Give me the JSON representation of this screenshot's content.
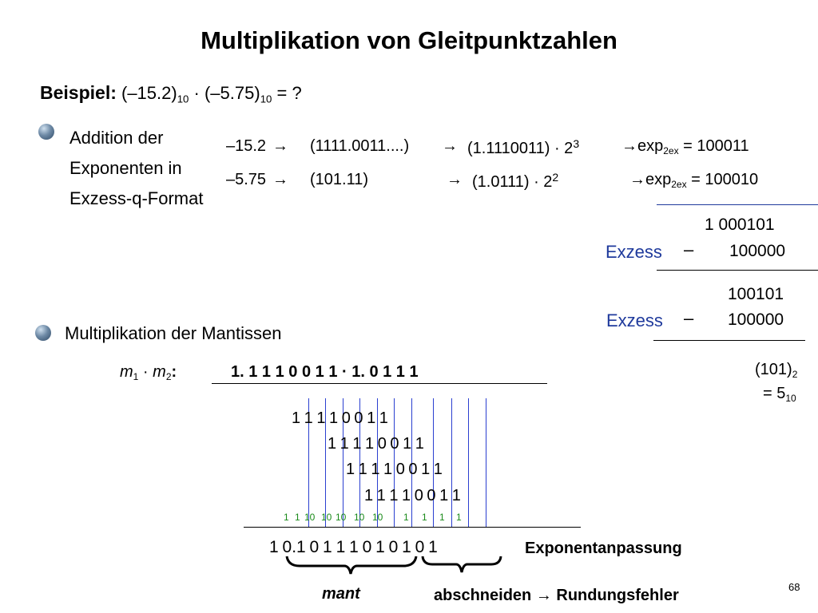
{
  "title": "Multiplikation von Gleitpunktzahlen",
  "example": {
    "label": "Beispiel:",
    "a": "(–15.2)",
    "a_sub": "10",
    "dot": "·",
    "b": "(–5.75)",
    "b_sub": "10",
    "tail": "= ?"
  },
  "bullet1": {
    "line1": "Addition der",
    "line2": "Exponenten in",
    "line3": "Exzess-q-Format"
  },
  "row1": {
    "a": "–15.2",
    "arrow": "→",
    "b": "(1111.0011....)",
    "c": "(1.1110011) · 2",
    "c_sup": "3",
    "d": "exp",
    "d_sub": "2ex",
    "e": "= 100011"
  },
  "row2": {
    "a": "–5.75",
    "arrow": "→",
    "b": "(101.11)",
    "c": "(1.0111) · 2",
    "c_sup": "2",
    "d": "exp",
    "d_sub": "2ex",
    "e": "= 100010"
  },
  "calc": {
    "sum": "1  000101",
    "exzess1": "Exzess",
    "minus1": "–",
    "val1": "100000",
    "res": "100101",
    "exzess2": "Exzess",
    "minus2": "–",
    "val2": "100000",
    "binary": "(101)",
    "binary_sub": "2",
    "decimal": "= 5",
    "decimal_sub": "10"
  },
  "bullet2": {
    "label": "Multiplikation der Mantissen"
  },
  "mult": {
    "m1": "m",
    "m1_sub": "1",
    "dot": "·",
    "m2": "m",
    "m2_sub": "2",
    "colon": ":",
    "expr": "1. 1 1 1 0 0 1 1 ·  1. 0 1 1 1",
    "rows": [
      "1 1 1 1 0 0 1 1",
      "1 1 1 1 0 0 1 1",
      "1 1 1 1 0 0 1 1",
      "1 1 1 1 0 0 1 1"
    ],
    "carries": [
      "1",
      "1",
      "10",
      "10",
      "10",
      "10",
      "10",
      "1",
      "1",
      "1",
      "1"
    ],
    "result": "1  0.1 0 1 1 1 0 1 0 1 0 1",
    "exponentenanpassung": "Exponentanpassung",
    "mant": "mant",
    "abschneiden": "abschneiden",
    "arrow": "→",
    "rundungsfehler": "Rundungsfehler"
  },
  "page_number": "68"
}
